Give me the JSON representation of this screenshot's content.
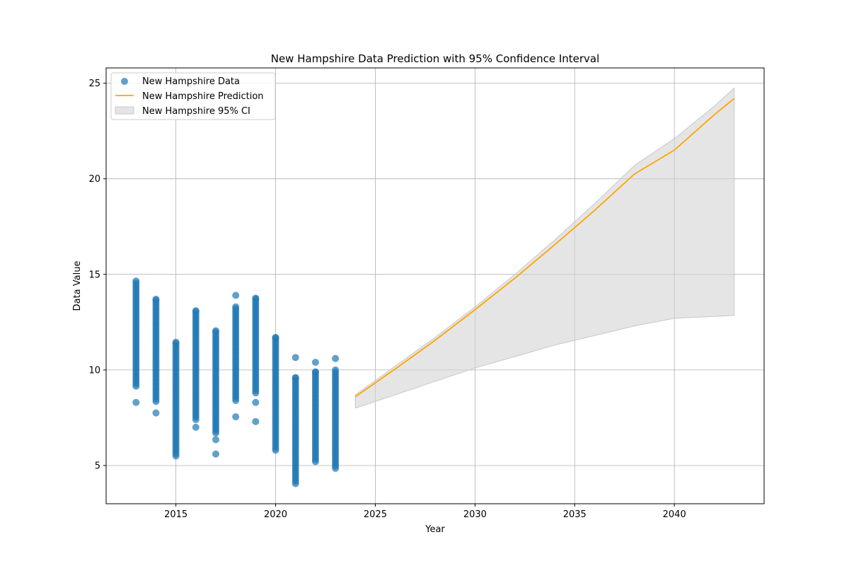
{
  "chart_data": {
    "type": "scatter",
    "title": "New Hampshire Data Prediction with 95% Confidence Interval",
    "xlabel": "Year",
    "ylabel": "Data Value",
    "xlim": [
      2011.5,
      2044.5
    ],
    "ylim": [
      3.0,
      25.8
    ],
    "x_ticks": [
      2015,
      2020,
      2025,
      2030,
      2035,
      2040
    ],
    "y_ticks": [
      5,
      10,
      15,
      20,
      25
    ],
    "grid": true,
    "legend_position": "top-left",
    "legend": [
      {
        "label": "New Hampshire Data",
        "kind": "scatter",
        "color": "#1f77b4"
      },
      {
        "label": "New Hampshire Prediction",
        "kind": "line",
        "color": "#ffa500"
      },
      {
        "label": "New Hampshire 95% CI",
        "kind": "band",
        "color": "#d3d3d3"
      }
    ],
    "scatter_series": {
      "name": "New Hampshire Data",
      "color": "#1f77b4",
      "groups": [
        {
          "year": 2013,
          "range": [
            9.15,
            14.65
          ],
          "outliers": [
            8.3
          ]
        },
        {
          "year": 2014,
          "range": [
            8.35,
            13.7
          ],
          "outliers": [
            7.75
          ]
        },
        {
          "year": 2015,
          "range": [
            5.5,
            11.45
          ],
          "outliers": []
        },
        {
          "year": 2016,
          "range": [
            7.4,
            13.1
          ],
          "outliers": [
            7.0
          ]
        },
        {
          "year": 2017,
          "range": [
            6.7,
            12.05
          ],
          "outliers": [
            6.35,
            5.6
          ]
        },
        {
          "year": 2018,
          "range": [
            8.4,
            13.3
          ],
          "outliers": [
            7.55,
            13.9
          ]
        },
        {
          "year": 2019,
          "range": [
            8.8,
            13.75
          ],
          "outliers": [
            8.3,
            7.3
          ]
        },
        {
          "year": 2020,
          "range": [
            5.8,
            11.7
          ],
          "outliers": []
        },
        {
          "year": 2021,
          "range": [
            4.05,
            9.6
          ],
          "outliers": [
            10.65
          ]
        },
        {
          "year": 2022,
          "range": [
            5.2,
            9.9
          ],
          "outliers": [
            10.4
          ]
        },
        {
          "year": 2023,
          "range": [
            4.85,
            10.0
          ],
          "outliers": [
            10.6
          ]
        }
      ]
    },
    "prediction": {
      "name": "New Hampshire Prediction",
      "color": "#ffa500",
      "x": [
        2024,
        2026,
        2028,
        2030,
        2032,
        2034,
        2036,
        2038,
        2040,
        2042,
        2043
      ],
      "y": [
        8.6,
        10.05,
        11.55,
        13.15,
        14.8,
        16.55,
        18.35,
        20.25,
        21.5,
        23.35,
        24.2
      ]
    },
    "confidence_interval": {
      "name": "New Hampshire 95% CI",
      "color": "#d3d3d3",
      "x": [
        2024,
        2026,
        2028,
        2030,
        2032,
        2034,
        2036,
        2038,
        2040,
        2042,
        2043
      ],
      "lower": [
        8.0,
        8.7,
        9.4,
        10.1,
        10.7,
        11.3,
        11.8,
        12.3,
        12.7,
        12.8,
        12.85
      ],
      "upper": [
        8.7,
        10.2,
        11.7,
        13.3,
        15.0,
        16.8,
        18.7,
        20.7,
        22.1,
        23.8,
        24.75
      ]
    }
  }
}
